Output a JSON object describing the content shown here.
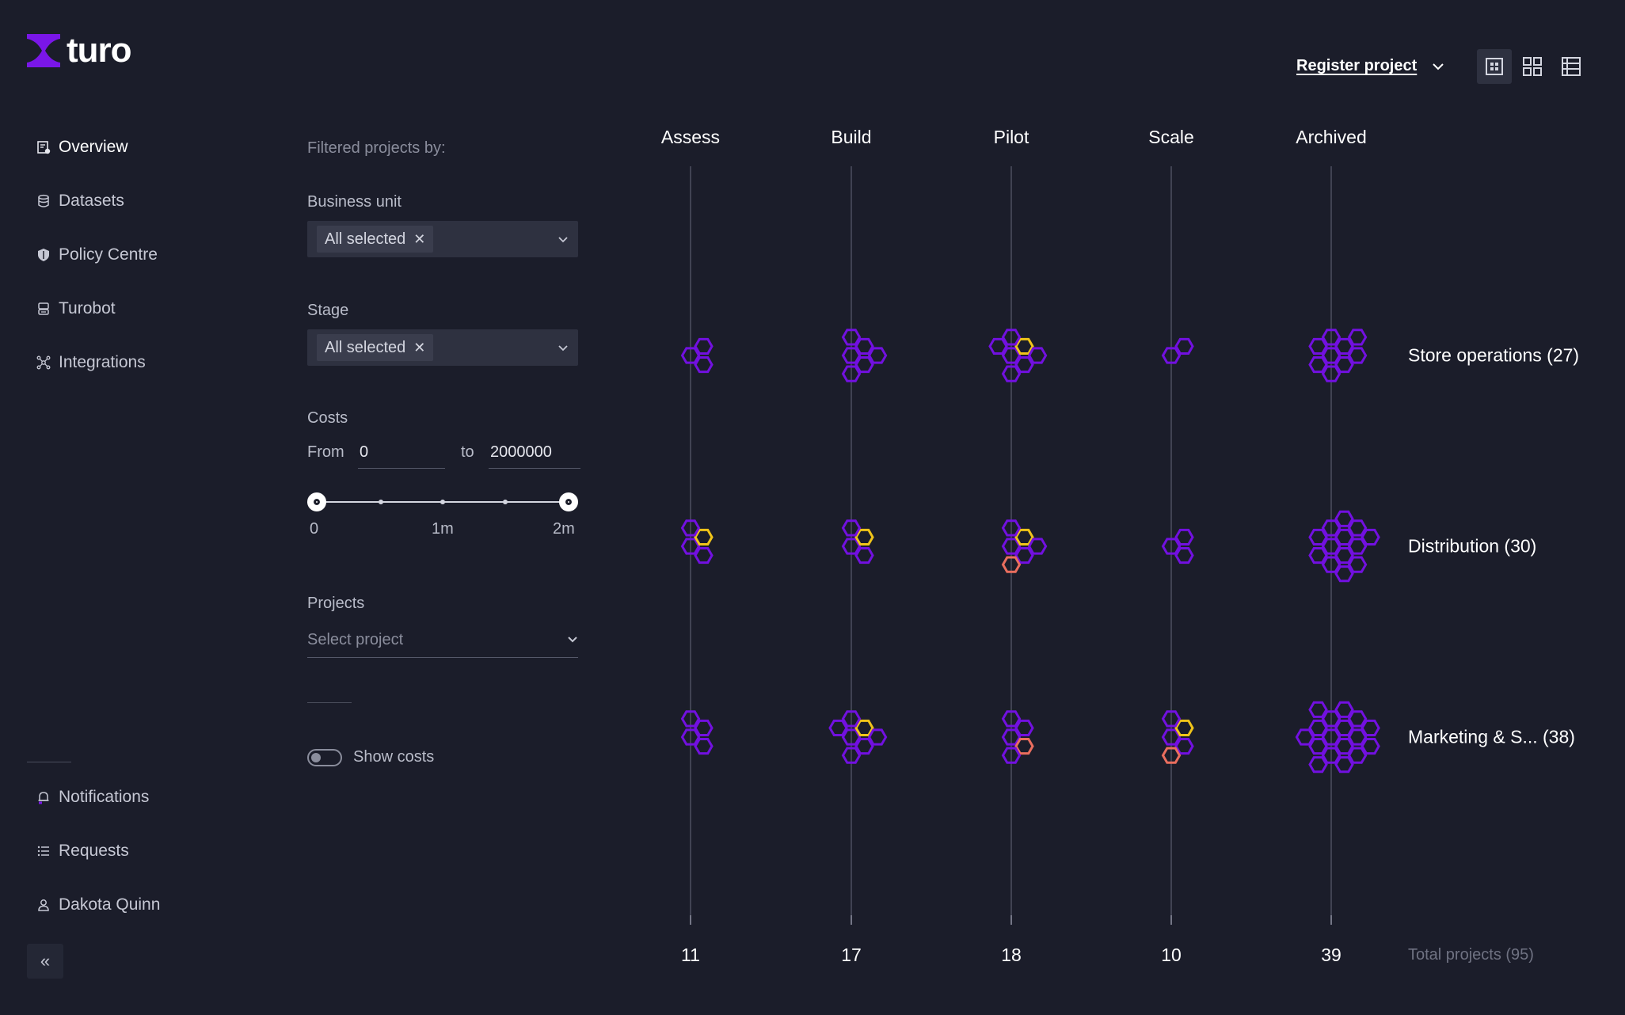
{
  "app": {
    "name": "turo"
  },
  "nav": {
    "top": [
      {
        "label": "Overview",
        "icon": "overview-icon",
        "active": true
      },
      {
        "label": "Datasets",
        "icon": "database-icon"
      },
      {
        "label": "Policy Centre",
        "icon": "shield-icon"
      },
      {
        "label": "Turobot",
        "icon": "robot-icon"
      },
      {
        "label": "Integrations",
        "icon": "network-icon"
      }
    ],
    "bottom": [
      {
        "label": "Notifications",
        "icon": "bell-icon"
      },
      {
        "label": "Requests",
        "icon": "list-icon"
      },
      {
        "label": "Dakota Quinn",
        "icon": "user-icon"
      }
    ],
    "collapse": "«"
  },
  "filters": {
    "heading": "Filtered projects by:",
    "business_unit": {
      "label": "Business unit",
      "chip": "All selected"
    },
    "stage": {
      "label": "Stage",
      "chip": "All selected"
    },
    "costs": {
      "label": "Costs",
      "from_label": "From",
      "from_value": "0",
      "to_label": "to",
      "to_value": "2000000",
      "slider_min": "0",
      "slider_mid": "1m",
      "slider_max": "2m",
      "range": [
        0,
        2000000
      ]
    },
    "projects": {
      "label": "Projects",
      "placeholder": "Select project"
    },
    "show_costs": {
      "label": "Show costs",
      "on": false
    }
  },
  "header": {
    "register": "Register project",
    "views": [
      "grid-small-view-icon",
      "grid-view-icon",
      "table-view-icon"
    ],
    "active_view": 0
  },
  "colors": {
    "project": "#7210e0",
    "warning": "#f0c419",
    "alert": "#ea6e5e",
    "background": "#1b1d2a"
  },
  "chart_data": {
    "type": "beeswarm-matrix",
    "columns": [
      "Assess",
      "Build",
      "Pilot",
      "Scale",
      "Archived"
    ],
    "column_totals": [
      "11",
      "17",
      "18",
      "10",
      "39"
    ],
    "rows": [
      {
        "label": "Store operations (27)",
        "counts": [
          3,
          6,
          7,
          2,
          9
        ],
        "warning": [
          0,
          0,
          1,
          0,
          0
        ],
        "alert": [
          0,
          0,
          0,
          0,
          0
        ]
      },
      {
        "label": "Distribution (30)",
        "counts": [
          4,
          4,
          6,
          3,
          13
        ],
        "warning": [
          1,
          1,
          1,
          0,
          0
        ],
        "alert": [
          0,
          0,
          1,
          0,
          0
        ]
      },
      {
        "label": "Marketing & S... (38)",
        "counts": [
          4,
          7,
          5,
          5,
          17
        ],
        "warning": [
          0,
          1,
          0,
          1,
          0
        ],
        "alert": [
          0,
          0,
          1,
          1,
          0
        ]
      }
    ],
    "total_label": "Total projects (95)"
  }
}
